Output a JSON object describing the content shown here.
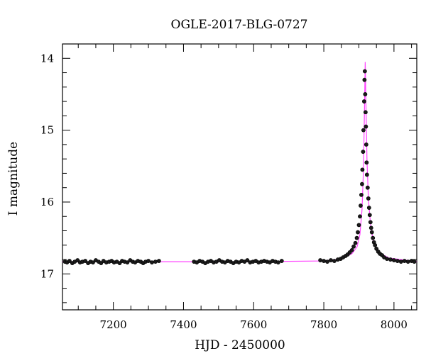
{
  "chart_data": {
    "type": "scatter",
    "title": "OGLE-2017-BLG-0727",
    "xlabel": "HJD - 2450000",
    "ylabel": "I magnitude",
    "xlim": [
      7055,
      8065
    ],
    "ylim": [
      17.5,
      13.8
    ],
    "y_inverted": true,
    "x_major_ticks": [
      7200,
      7400,
      7600,
      7800,
      8000
    ],
    "x_minor_step": 50,
    "y_major_ticks": [
      14,
      15,
      16,
      17
    ],
    "y_minor_step": 0.2,
    "grid": false,
    "colors": {
      "points": "#1a1a1a",
      "point_edge": "#000000",
      "model": "#ff44ff"
    },
    "model": {
      "type": "microlensing-pspl",
      "baseline_mag": 16.83,
      "t0": 7918,
      "peak_mag": 14.05,
      "x": [
        7055,
        7600,
        7800,
        7850,
        7880,
        7895,
        7903,
        7909,
        7913,
        7916,
        7918,
        7920,
        7923,
        7927,
        7933,
        7941,
        7956,
        7986,
        8036,
        8065
      ],
      "y": [
        16.83,
        16.83,
        16.82,
        16.79,
        16.72,
        16.62,
        16.45,
        16.1,
        15.55,
        14.7,
        14.05,
        14.6,
        15.4,
        15.95,
        16.3,
        16.55,
        16.7,
        16.78,
        16.81,
        16.83
      ]
    },
    "series": [
      {
        "x": [
          7062,
          7068,
          7075,
          7083,
          7090,
          7098,
          7105,
          7112,
          7120,
          7128,
          7135,
          7142,
          7150,
          7158,
          7165,
          7172,
          7180,
          7188,
          7195,
          7202,
          7210,
          7218,
          7225,
          7232,
          7240,
          7248,
          7255,
          7262,
          7270,
          7278,
          7285,
          7292,
          7300,
          7310,
          7320,
          7330,
          7430,
          7438,
          7446,
          7454,
          7462,
          7470,
          7478,
          7486,
          7494,
          7502,
          7510,
          7518,
          7526,
          7534,
          7542,
          7550,
          7558,
          7566,
          7574,
          7582,
          7590,
          7598,
          7606,
          7614,
          7622,
          7630,
          7638,
          7646,
          7654,
          7662,
          7670,
          7680,
          7790,
          7800,
          7810,
          7820,
          7830,
          7840,
          7848,
          7855,
          7862,
          7868,
          7874,
          7880,
          7885,
          7890,
          7894,
          7897,
          7900,
          7903,
          7905,
          7907,
          7909,
          7910,
          7912,
          7913,
          7915,
          7916,
          7917,
          7918,
          7919,
          7920,
          7921,
          7922,
          7923,
          7925,
          7927,
          7929,
          7931,
          7933,
          7935,
          7937,
          7940,
          7943,
          7946,
          7950,
          7955,
          7960,
          7966,
          7972,
          7980,
          7990,
          8000,
          8010,
          8020,
          8030,
          8040,
          8050,
          8058
        ],
        "y": [
          16.83,
          16.84,
          16.82,
          16.85,
          16.83,
          16.81,
          16.84,
          16.83,
          16.82,
          16.85,
          16.83,
          16.84,
          16.81,
          16.83,
          16.85,
          16.82,
          16.84,
          16.83,
          16.82,
          16.84,
          16.83,
          16.85,
          16.82,
          16.83,
          16.84,
          16.81,
          16.83,
          16.84,
          16.82,
          16.83,
          16.85,
          16.83,
          16.82,
          16.84,
          16.83,
          16.82,
          16.83,
          16.84,
          16.82,
          16.83,
          16.85,
          16.83,
          16.82,
          16.84,
          16.83,
          16.81,
          16.83,
          16.84,
          16.82,
          16.83,
          16.85,
          16.83,
          16.84,
          16.82,
          16.83,
          16.81,
          16.84,
          16.83,
          16.82,
          16.84,
          16.83,
          16.82,
          16.83,
          16.84,
          16.82,
          16.83,
          16.84,
          16.82,
          16.81,
          16.82,
          16.83,
          16.81,
          16.82,
          16.8,
          16.79,
          16.77,
          16.75,
          16.73,
          16.7,
          16.67,
          16.62,
          16.57,
          16.5,
          16.42,
          16.32,
          16.2,
          16.05,
          15.9,
          15.75,
          15.55,
          15.3,
          15.0,
          14.6,
          14.3,
          14.18,
          14.5,
          14.75,
          14.95,
          15.2,
          15.45,
          15.62,
          15.8,
          15.95,
          16.08,
          16.18,
          16.28,
          16.36,
          16.42,
          16.5,
          16.56,
          16.6,
          16.65,
          16.69,
          16.72,
          16.74,
          16.77,
          16.79,
          16.8,
          16.81,
          16.82,
          16.83,
          16.82,
          16.83,
          16.82,
          16.83
        ]
      }
    ]
  }
}
